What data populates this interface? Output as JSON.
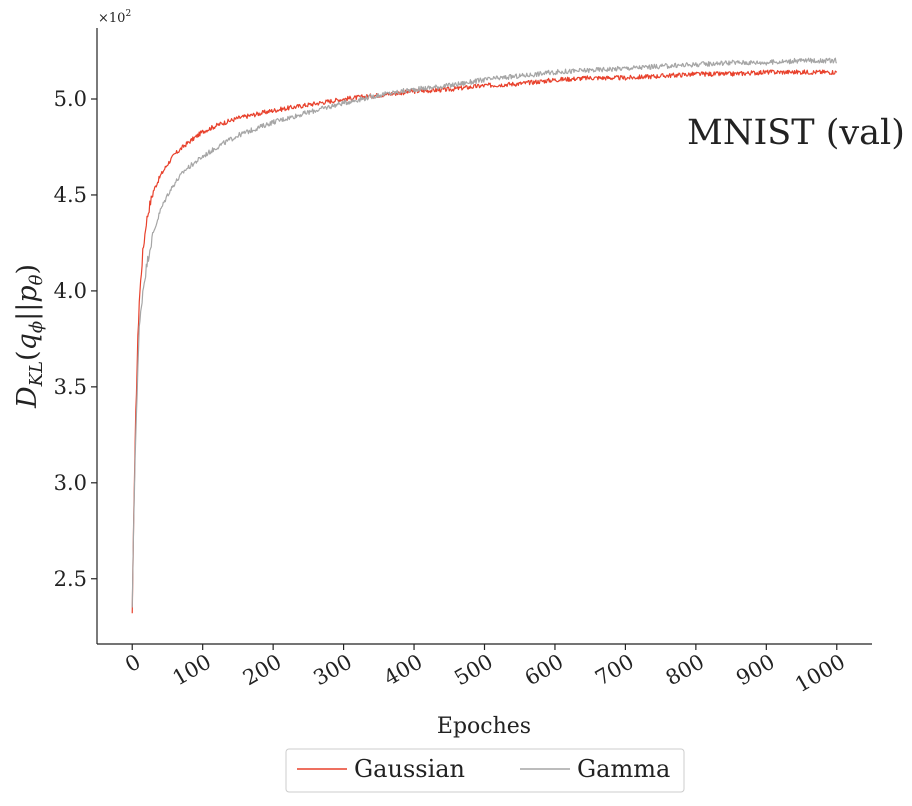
{
  "chart_data": {
    "type": "line",
    "title": "",
    "annotation": "MNIST (val)",
    "xlabel": "Epoches",
    "ylabel": "D_KL(q_ϕ||p_θ)",
    "ylabel_parts": {
      "main": "D",
      "sub1": "KL",
      "open": "(",
      "q": "q",
      "sub2": "ϕ",
      "mid": "||",
      "p": "p",
      "sub3": "θ",
      "close": ")"
    },
    "y_multiplier": "×10",
    "y_multiplier_exp": "2",
    "xlim": [
      -50,
      1050
    ],
    "ylim": [
      2.16,
      5.37
    ],
    "xticks": [
      0,
      100,
      200,
      300,
      400,
      500,
      600,
      700,
      800,
      900,
      1000
    ],
    "xtick_labels": [
      "0",
      "100",
      "200",
      "300",
      "400",
      "500",
      "600",
      "700",
      "800",
      "900",
      "1000"
    ],
    "yticks": [
      2.5,
      3.0,
      3.5,
      4.0,
      4.5,
      5.0
    ],
    "ytick_labels": [
      "2.5",
      "3.0",
      "3.5",
      "4.0",
      "4.5",
      "5.0"
    ],
    "grid": false,
    "legend_position": "bottom-center",
    "series": [
      {
        "name": "Gaussian",
        "color": "#e8412c",
        "x": [
          0,
          2,
          5,
          8,
          10,
          15,
          20,
          25,
          30,
          40,
          50,
          60,
          75,
          100,
          125,
          150,
          200,
          250,
          300,
          350,
          400,
          450,
          500,
          550,
          600,
          650,
          700,
          750,
          800,
          850,
          900,
          950,
          1000
        ],
        "values": [
          2.32,
          2.8,
          3.35,
          3.75,
          3.95,
          4.2,
          4.36,
          4.45,
          4.52,
          4.6,
          4.66,
          4.71,
          4.76,
          4.83,
          4.87,
          4.9,
          4.94,
          4.97,
          5.0,
          5.02,
          5.04,
          5.05,
          5.07,
          5.08,
          5.1,
          5.11,
          5.11,
          5.12,
          5.13,
          5.13,
          5.14,
          5.14,
          5.14
        ],
        "noise": 0.012
      },
      {
        "name": "Gamma",
        "color": "#a6a6a6",
        "x": [
          0,
          2,
          5,
          8,
          10,
          15,
          20,
          25,
          30,
          40,
          50,
          60,
          75,
          100,
          125,
          150,
          200,
          250,
          300,
          350,
          400,
          450,
          500,
          550,
          600,
          650,
          700,
          750,
          800,
          850,
          900,
          950,
          1000
        ],
        "values": [
          2.35,
          2.78,
          3.25,
          3.6,
          3.8,
          4.0,
          4.12,
          4.22,
          4.3,
          4.42,
          4.5,
          4.56,
          4.63,
          4.7,
          4.76,
          4.81,
          4.88,
          4.93,
          4.98,
          5.02,
          5.05,
          5.07,
          5.1,
          5.12,
          5.14,
          5.15,
          5.16,
          5.17,
          5.18,
          5.19,
          5.19,
          5.2,
          5.2
        ],
        "noise": 0.013
      }
    ]
  }
}
